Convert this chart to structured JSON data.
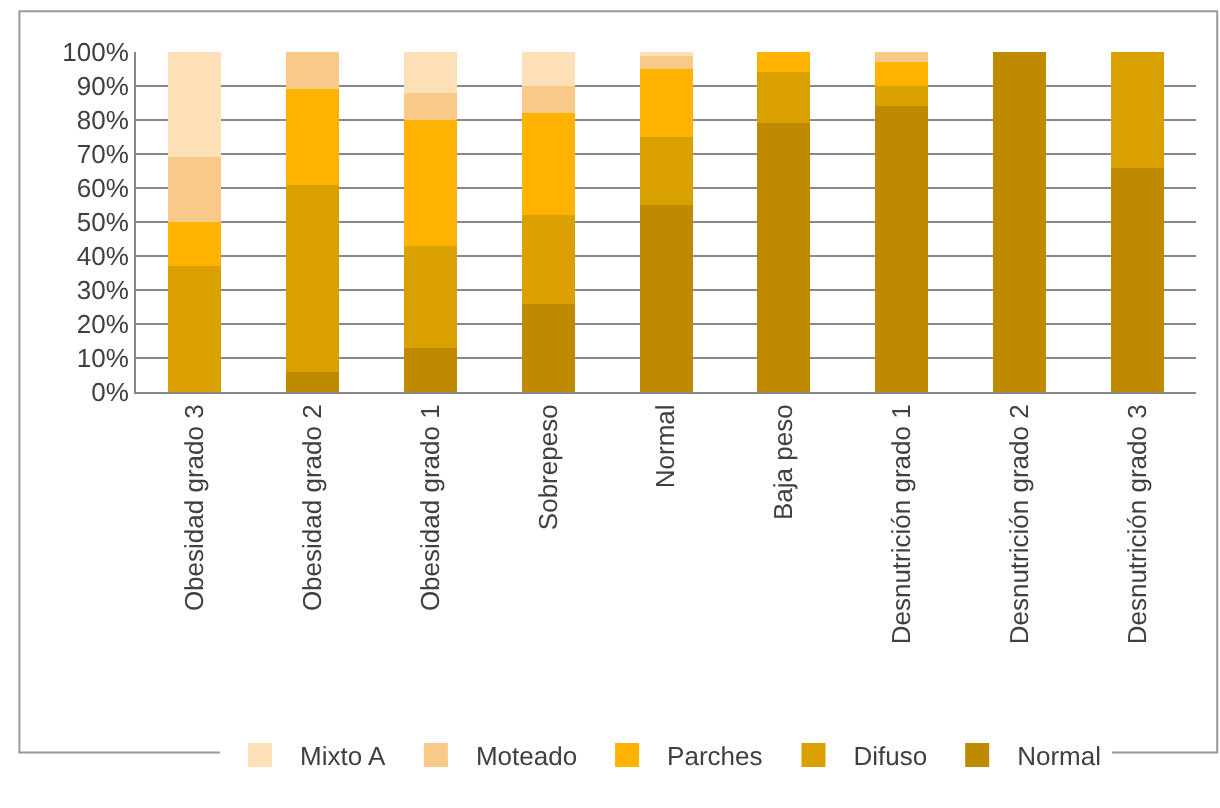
{
  "chart_data": {
    "type": "bar",
    "stacked": true,
    "categories": [
      "Obesidad grado 3",
      "Obesidad grado 2",
      "Obesidad grado 1",
      "Sobrepeso",
      "Normal",
      "Baja peso",
      "Desnutrición grado 1",
      "Desnutrición grado 2",
      "Desnutrición grado 3"
    ],
    "series": [
      {
        "name": "Normal",
        "color": "#bf8a00",
        "values": [
          0,
          6,
          13,
          26,
          55,
          79,
          84,
          100,
          66
        ]
      },
      {
        "name": "Difuso",
        "color": "#d9a000",
        "values": [
          37,
          55,
          30,
          26,
          20,
          15,
          6,
          0,
          34
        ]
      },
      {
        "name": "Parches",
        "color": "#ffb300",
        "values": [
          13,
          28,
          37,
          30,
          20,
          6,
          7,
          0,
          0
        ]
      },
      {
        "name": "Moteado",
        "color": "#f9c98a",
        "values": [
          19,
          11,
          8,
          8,
          4,
          0,
          3,
          0,
          0
        ]
      },
      {
        "name": "Mixto A",
        "color": "#fde0b8",
        "values": [
          31,
          0,
          12,
          10,
          1,
          0,
          0,
          0,
          0
        ]
      }
    ],
    "ylim": [
      0,
      100
    ],
    "yticks": [
      {
        "value": 0,
        "label": "0%"
      },
      {
        "value": 10,
        "label": "10%"
      },
      {
        "value": 20,
        "label": "20%"
      },
      {
        "value": 30,
        "label": "30%"
      },
      {
        "value": 40,
        "label": "40%"
      },
      {
        "value": 50,
        "label": "50%"
      },
      {
        "value": 60,
        "label": "60%"
      },
      {
        "value": 70,
        "label": "70%"
      },
      {
        "value": 80,
        "label": "80%"
      },
      {
        "value": 90,
        "label": "90%"
      },
      {
        "value": 100,
        "label": "100%"
      }
    ],
    "grid": "y",
    "legend": "bottom"
  }
}
